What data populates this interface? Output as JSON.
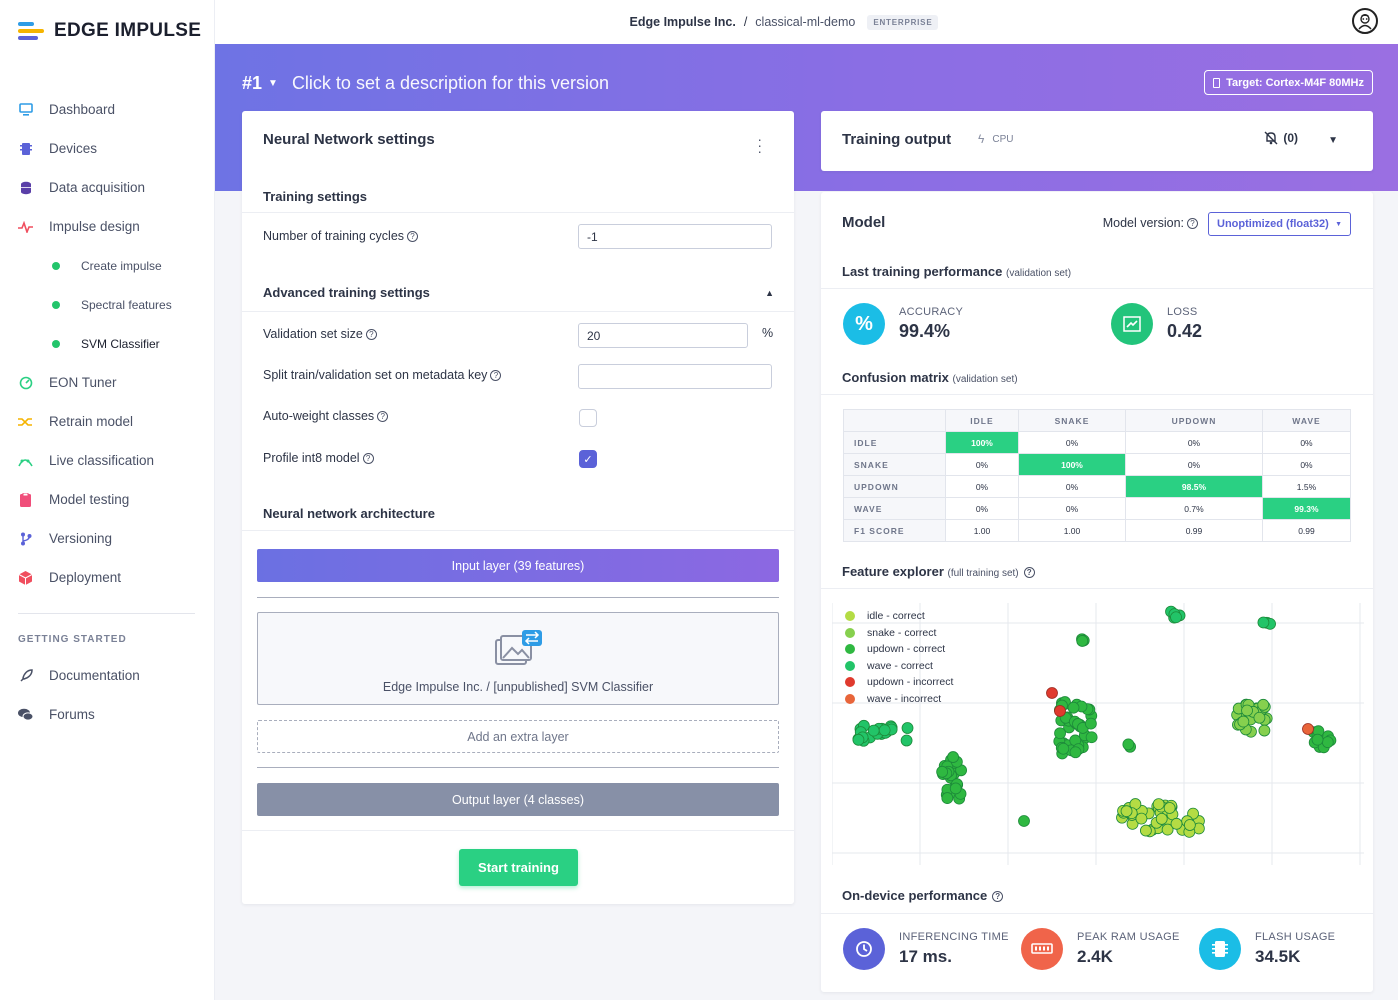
{
  "brand": {
    "name": "EDGE IMPULSE"
  },
  "sidebar": {
    "items": [
      {
        "label": "Dashboard",
        "icon": "monitor-icon",
        "color": "#2e9ce6"
      },
      {
        "label": "Devices",
        "icon": "chip-icon",
        "color": "#5b62d8"
      },
      {
        "label": "Data acquisition",
        "icon": "database-icon",
        "color": "#5a3fa8"
      },
      {
        "label": "Impulse design",
        "icon": "pulse-icon",
        "color": "#f04e5e"
      }
    ],
    "sub_items": [
      {
        "label": "Create impulse"
      },
      {
        "label": "Spectral features"
      },
      {
        "label": "SVM Classifier"
      }
    ],
    "items2": [
      {
        "label": "EON Tuner",
        "icon": "tuner-icon",
        "color": "#2ad083"
      },
      {
        "label": "Retrain model",
        "icon": "shuffle-icon",
        "color": "#f5b400"
      },
      {
        "label": "Live classification",
        "icon": "live-icon",
        "color": "#2ad083"
      },
      {
        "label": "Model testing",
        "icon": "clipboard-icon",
        "color": "#f04e7a"
      },
      {
        "label": "Versioning",
        "icon": "branch-icon",
        "color": "#5b62d8"
      },
      {
        "label": "Deployment",
        "icon": "box-icon",
        "color": "#f04e5e"
      }
    ],
    "getting_started_heading": "GETTING STARTED",
    "items3": [
      {
        "label": "Documentation",
        "icon": "rocket-icon"
      },
      {
        "label": "Forums",
        "icon": "chat-icon"
      }
    ]
  },
  "topbar": {
    "org": "Edge Impulse Inc.",
    "separator": "/",
    "project": "classical-ml-demo",
    "badge": "ENTERPRISE"
  },
  "hero": {
    "version": "#1",
    "description": "Click to set a description for this version",
    "target": "Target: Cortex-M4F 80MHz"
  },
  "nn": {
    "title": "Neural Network settings",
    "training_settings": "Training settings",
    "cycles_label": "Number of training cycles",
    "cycles_value": "-1",
    "advanced": "Advanced training settings",
    "val_size_label": "Validation set size",
    "val_size_value": "20",
    "val_unit": "%",
    "split_label": "Split train/validation set on metadata key",
    "split_value": "",
    "autoweight_label": "Auto-weight classes",
    "profile_label": "Profile int8 model",
    "arch_title": "Neural network architecture",
    "input_layer": "Input layer (39 features)",
    "svm_label": "Edge Impulse Inc. / [unpublished] SVM Classifier",
    "extra_layer": "Add an extra layer",
    "output_layer": "Output layer (4 classes)",
    "start_button": "Start training"
  },
  "training_output": {
    "title": "Training output",
    "cpu": "CPU",
    "alerts": "(0)"
  },
  "model": {
    "title": "Model",
    "version_label": "Model version:",
    "version_value": "Unoptimized (float32)",
    "last_perf": "Last training performance",
    "last_perf_note": "(validation set)",
    "accuracy_label": "ACCURACY",
    "accuracy_value": "99.4%",
    "loss_label": "LOSS",
    "loss_value": "0.42",
    "cm_title": "Confusion matrix",
    "cm_note": "(validation set)",
    "cm_columns": [
      "IDLE",
      "SNAKE",
      "UPDOWN",
      "WAVE"
    ],
    "cm_rows": [
      {
        "label": "IDLE",
        "cells": [
          "100%",
          "0%",
          "0%",
          "0%"
        ],
        "hi": 0
      },
      {
        "label": "SNAKE",
        "cells": [
          "0%",
          "100%",
          "0%",
          "0%"
        ],
        "hi": 1
      },
      {
        "label": "UPDOWN",
        "cells": [
          "0%",
          "0%",
          "98.5%",
          "1.5%"
        ],
        "hi": 2
      },
      {
        "label": "WAVE",
        "cells": [
          "0%",
          "0%",
          "0.7%",
          "99.3%"
        ],
        "hi": 3
      },
      {
        "label": "F1 SCORE",
        "cells": [
          "1.00",
          "1.00",
          "0.99",
          "0.99"
        ],
        "hi": -1
      }
    ],
    "fe_title": "Feature explorer",
    "fe_note": "(full training set)",
    "legend": [
      {
        "label": "idle - correct",
        "color": "#b4dc44"
      },
      {
        "label": "snake - correct",
        "color": "#86d04e"
      },
      {
        "label": "updown - correct",
        "color": "#2fb841"
      },
      {
        "label": "wave - correct",
        "color": "#22c468"
      },
      {
        "label": "updown - incorrect",
        "color": "#e03a2e"
      },
      {
        "label": "wave - incorrect",
        "color": "#e8653a"
      }
    ],
    "odp_title": "On-device performance",
    "inf_label": "INFERENCING TIME",
    "inf_value": "17 ms.",
    "ram_label": "PEAK RAM USAGE",
    "ram_value": "2.4K",
    "flash_label": "FLASH USAGE",
    "flash_value": "34.5K"
  }
}
